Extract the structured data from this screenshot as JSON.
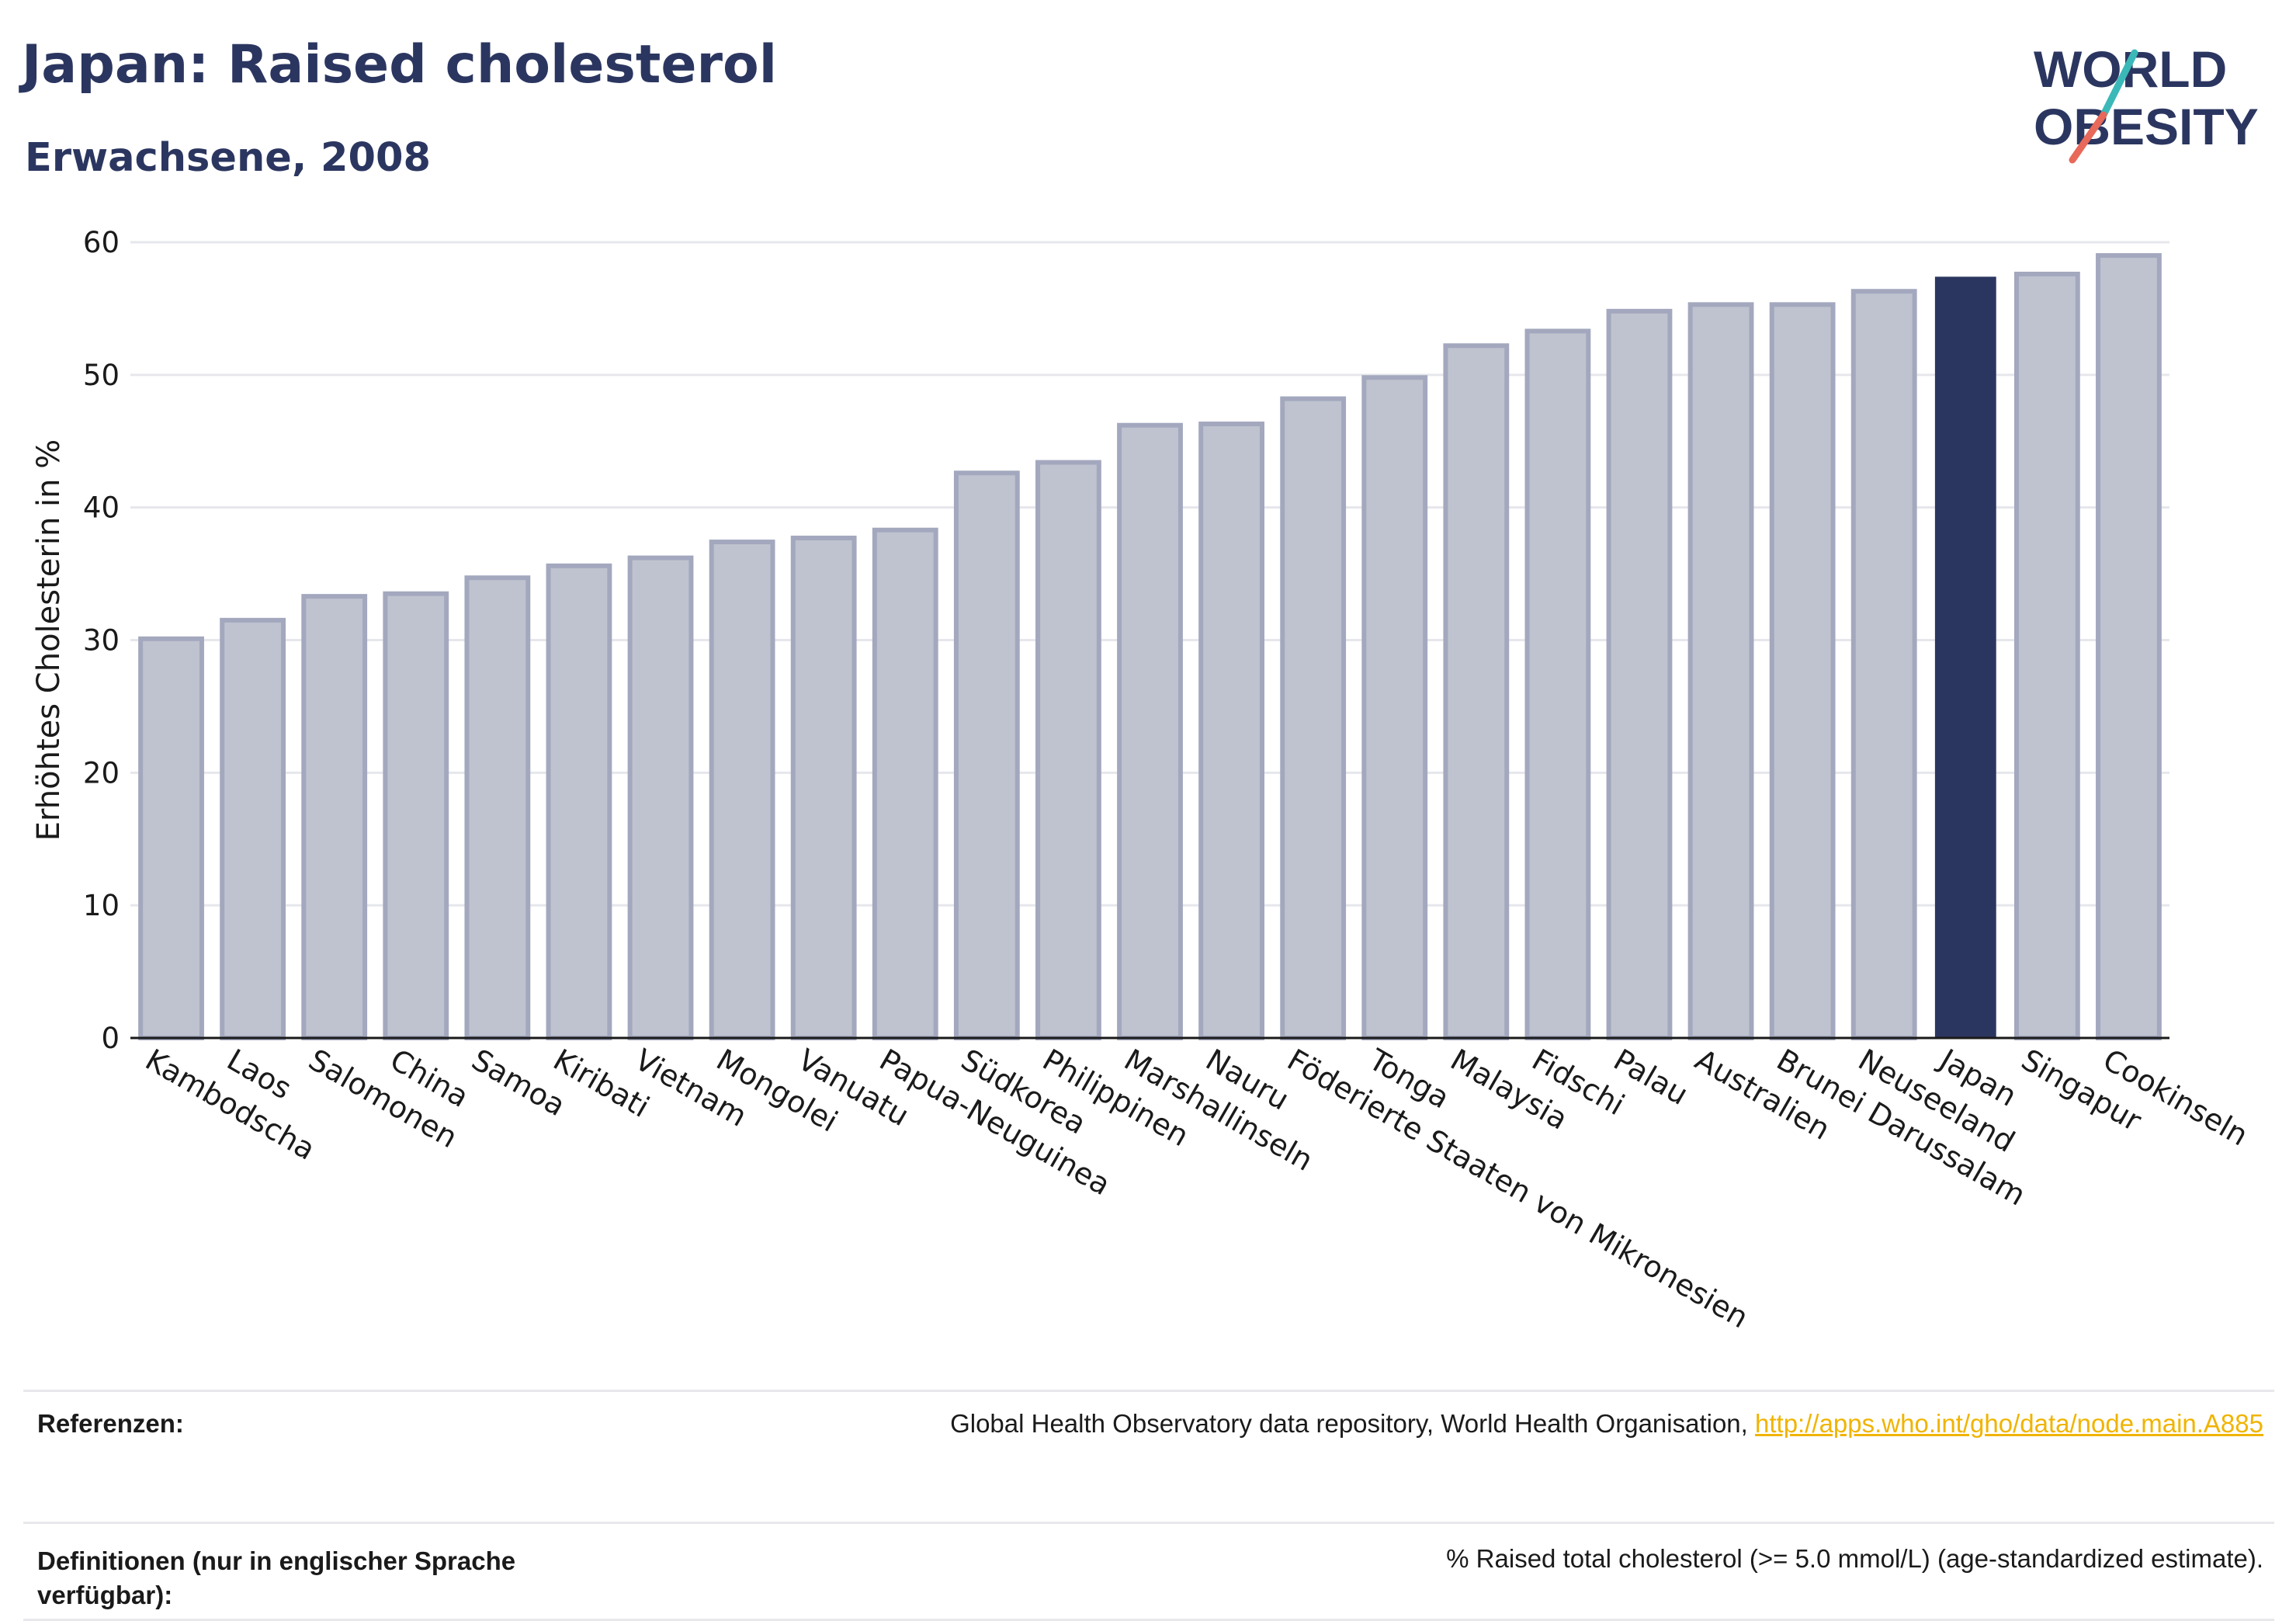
{
  "header": {
    "title": "Japan: Raised cholesterol",
    "subtitle": "Erwachsene, 2008"
  },
  "logo": {
    "line1": "WORLD",
    "line2": "OBESITY",
    "colors": {
      "text": "#2b3660",
      "slash_teal": "#3bb8b8",
      "slash_red": "#e8685a"
    }
  },
  "chart_data": {
    "type": "bar",
    "ylabel": "Erhöhtes Cholesterin in %",
    "xlabel": "",
    "ylim": [
      0,
      60
    ],
    "yticks": [
      0,
      10,
      20,
      30,
      40,
      50,
      60
    ],
    "grid": true,
    "highlight": "Japan",
    "colors": {
      "bar": "#bfc3cf",
      "bar_border": "#a3a8be",
      "highlight": "#2b3660",
      "grid": "#e6e7ec"
    },
    "categories": [
      "Kambodscha",
      "Laos",
      "Salomonen",
      "China",
      "Samoa",
      "Kiribati",
      "Vietnam",
      "Mongolei",
      "Vanuatu",
      "Papua-Neuguinea",
      "Südkorea",
      "Philippinen",
      "Marshallinseln",
      "Nauru",
      "Föderierte Staaten von Mikronesien",
      "Tonga",
      "Malaysia",
      "Fidschi",
      "Palau",
      "Australien",
      "Brunei Darussalam",
      "Neuseeland",
      "Japan",
      "Singapur",
      "Cookinseln"
    ],
    "values": [
      30.1,
      31.5,
      33.3,
      33.5,
      34.7,
      35.6,
      36.2,
      37.4,
      37.7,
      38.3,
      42.6,
      43.4,
      46.2,
      46.3,
      48.2,
      49.8,
      52.2,
      53.3,
      54.8,
      55.3,
      55.3,
      56.3,
      57.4,
      57.6,
      59.0
    ]
  },
  "footer": {
    "references_label": "Referenzen:",
    "references_text": "Global Health Observatory data repository, World Health Organisation, ",
    "references_link": "http://apps.who.int/gho/data/node.main.A885",
    "definitions_label": "Definitionen (nur in englischer Sprache verfügbar):",
    "definitions_text": "% Raised total cholesterol (>= 5.0 mmol/L) (age-standardized estimate)."
  }
}
